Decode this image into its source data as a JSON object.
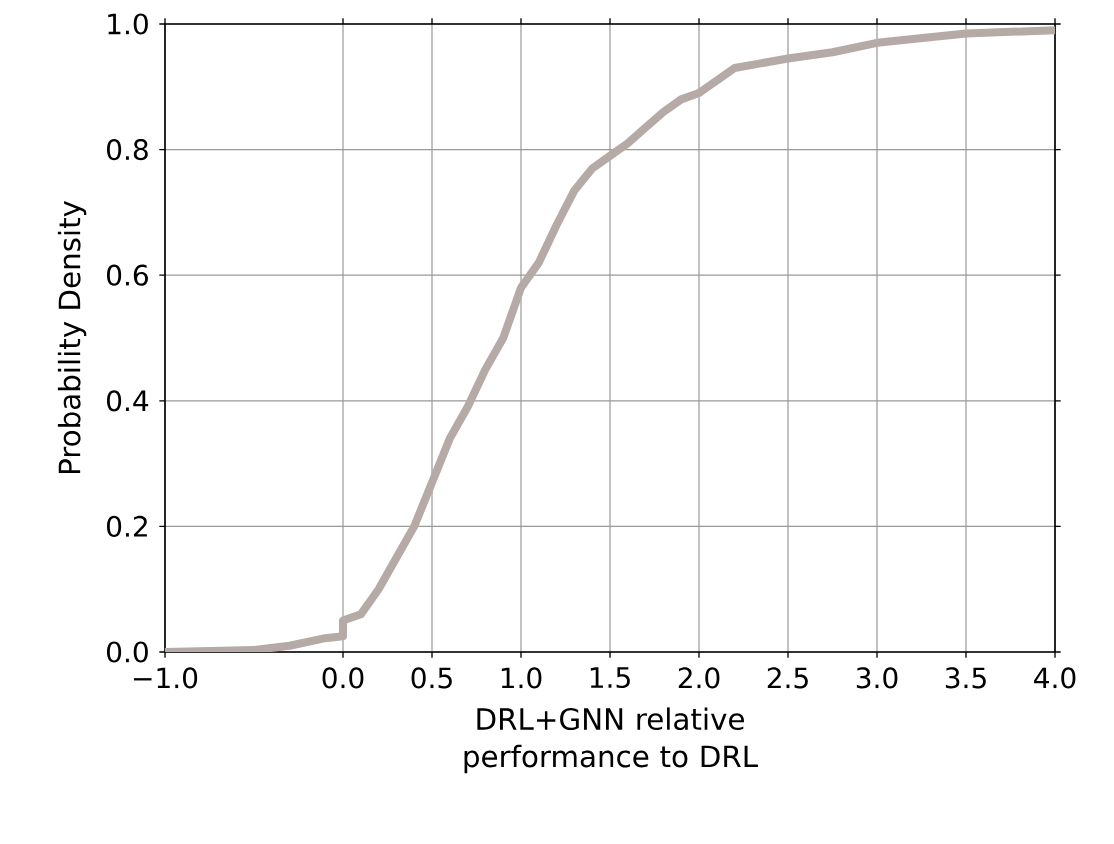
{
  "chart_data": {
    "type": "line",
    "xlabel": "DRL+GNN relative performance to DRL",
    "ylabel": "Probability Density",
    "x": [
      -1.0,
      -0.5,
      -0.3,
      -0.1,
      0.0,
      0.0,
      0.1,
      0.2,
      0.3,
      0.4,
      0.5,
      0.6,
      0.7,
      0.8,
      0.9,
      1.0,
      1.1,
      1.2,
      1.3,
      1.4,
      1.5,
      1.6,
      1.7,
      1.8,
      1.9,
      2.0,
      2.1,
      2.2,
      2.5,
      2.75,
      3.0,
      3.5,
      4.0
    ],
    "series": [
      {
        "color": "#b5aaa6",
        "values": [
          0.0,
          0.003,
          0.01,
          0.022,
          0.025,
          0.05,
          0.06,
          0.1,
          0.15,
          0.2,
          0.27,
          0.34,
          0.39,
          0.45,
          0.5,
          0.58,
          0.62,
          0.68,
          0.735,
          0.77,
          0.79,
          0.81,
          0.835,
          0.86,
          0.88,
          0.89,
          0.91,
          0.93,
          0.945,
          0.955,
          0.97,
          0.985,
          0.99
        ]
      }
    ],
    "xlim": [
      -1.0,
      4.0
    ],
    "ylim": [
      0.0,
      1.0
    ],
    "xticks": [
      {
        "value": -1.0,
        "label": "−1.0"
      },
      {
        "value": 0.0,
        "label": "0.0"
      },
      {
        "value": 0.5,
        "label": "0.5"
      },
      {
        "value": 1.0,
        "label": "1.0"
      },
      {
        "value": 1.5,
        "label": "1.5"
      },
      {
        "value": 2.0,
        "label": "2.0"
      },
      {
        "value": 2.5,
        "label": "2.5"
      },
      {
        "value": 3.0,
        "label": "3.0"
      },
      {
        "value": 3.5,
        "label": "3.5"
      },
      {
        "value": 4.0,
        "label": "4.0"
      }
    ],
    "yticks": [
      {
        "value": 0.0,
        "label": "0.0"
      },
      {
        "value": 0.2,
        "label": "0.2"
      },
      {
        "value": 0.4,
        "label": "0.4"
      },
      {
        "value": 0.6,
        "label": "0.6"
      },
      {
        "value": 0.8,
        "label": "0.8"
      },
      {
        "value": 1.0,
        "label": "1.0"
      }
    ],
    "grid": true,
    "marker": "none",
    "line_style": "solid"
  }
}
